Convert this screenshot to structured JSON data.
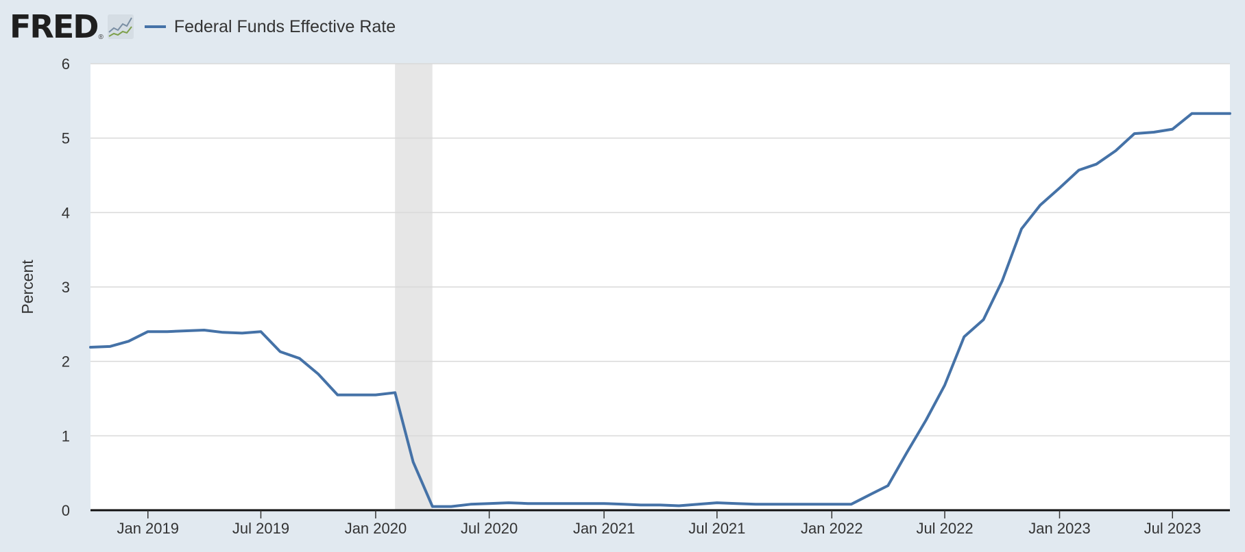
{
  "header": {
    "logo_text": "FRED",
    "logo_mark": "®",
    "legend_label": "Federal Funds Effective Rate"
  },
  "colors": {
    "series": "#4572a7",
    "background": "#e1e9f0",
    "plot": "#ffffff",
    "recession": "#e6e6e6",
    "grid": "#d9d9d9"
  },
  "chart_data": {
    "type": "line",
    "title": "",
    "xlabel": "",
    "ylabel": "Percent",
    "ylim": [
      0,
      6
    ],
    "yticks": [
      0,
      1,
      2,
      3,
      4,
      5,
      6
    ],
    "xlim": [
      "2018-10-01",
      "2023-10-01"
    ],
    "xticks": [
      {
        "date": "2019-01-01",
        "label": "Jan 2019"
      },
      {
        "date": "2019-07-01",
        "label": "Jul 2019"
      },
      {
        "date": "2020-01-01",
        "label": "Jan 2020"
      },
      {
        "date": "2020-07-01",
        "label": "Jul 2020"
      },
      {
        "date": "2021-01-01",
        "label": "Jan 2021"
      },
      {
        "date": "2021-07-01",
        "label": "Jul 2021"
      },
      {
        "date": "2022-01-01",
        "label": "Jan 2022"
      },
      {
        "date": "2022-07-01",
        "label": "Jul 2022"
      },
      {
        "date": "2023-01-01",
        "label": "Jan 2023"
      },
      {
        "date": "2023-07-01",
        "label": "Jul 2023"
      }
    ],
    "grid": true,
    "recession_shading": [
      {
        "start": "2020-02-01",
        "end": "2020-04-01"
      }
    ],
    "series": [
      {
        "name": "Federal Funds Effective Rate",
        "color": "#4572a7",
        "x": [
          "2018-10-01",
          "2018-11-01",
          "2018-12-01",
          "2019-01-01",
          "2019-02-01",
          "2019-03-01",
          "2019-04-01",
          "2019-05-01",
          "2019-06-01",
          "2019-07-01",
          "2019-08-01",
          "2019-09-01",
          "2019-10-01",
          "2019-11-01",
          "2019-12-01",
          "2020-01-01",
          "2020-02-01",
          "2020-03-01",
          "2020-04-01",
          "2020-05-01",
          "2020-06-01",
          "2020-07-01",
          "2020-08-01",
          "2020-09-01",
          "2020-10-01",
          "2020-11-01",
          "2020-12-01",
          "2021-01-01",
          "2021-02-01",
          "2021-03-01",
          "2021-04-01",
          "2021-05-01",
          "2021-06-01",
          "2021-07-01",
          "2021-08-01",
          "2021-09-01",
          "2021-10-01",
          "2021-11-01",
          "2021-12-01",
          "2022-01-01",
          "2022-02-01",
          "2022-03-01",
          "2022-04-01",
          "2022-05-01",
          "2022-06-01",
          "2022-07-01",
          "2022-08-01",
          "2022-09-01",
          "2022-10-01",
          "2022-11-01",
          "2022-12-01",
          "2023-01-01",
          "2023-02-01",
          "2023-03-01",
          "2023-04-01",
          "2023-05-01",
          "2023-06-01",
          "2023-07-01",
          "2023-08-01",
          "2023-09-01",
          "2023-10-01"
        ],
        "y": [
          2.19,
          2.2,
          2.27,
          2.4,
          2.4,
          2.41,
          2.42,
          2.39,
          2.38,
          2.4,
          2.13,
          2.04,
          1.83,
          1.55,
          1.55,
          1.55,
          1.58,
          0.65,
          0.05,
          0.05,
          0.08,
          0.09,
          0.1,
          0.09,
          0.09,
          0.09,
          0.09,
          0.09,
          0.08,
          0.07,
          0.07,
          0.06,
          0.08,
          0.1,
          0.09,
          0.08,
          0.08,
          0.08,
          0.08,
          0.08,
          0.08,
          0.2,
          0.33,
          0.77,
          1.21,
          1.68,
          2.33,
          2.56,
          3.08,
          3.78,
          4.1,
          4.33,
          4.57,
          4.65,
          4.83,
          5.06,
          5.08,
          5.12,
          5.33,
          5.33,
          5.33
        ]
      }
    ]
  }
}
